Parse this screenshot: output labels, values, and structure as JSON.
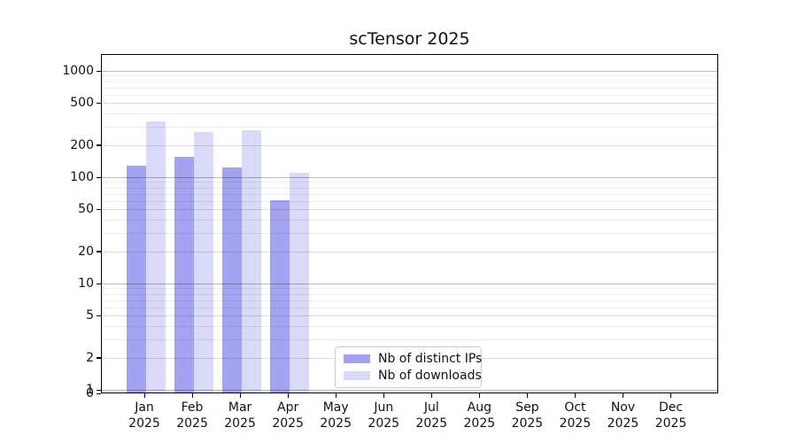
{
  "chart_data": {
    "type": "bar",
    "title": "scTensor 2025",
    "xlabel": "",
    "ylabel": "",
    "y_scale": "log (linear segment 0-1 at bottom)",
    "ylim": [
      0,
      1440
    ],
    "y_ticks": [
      0,
      1,
      2,
      5,
      10,
      20,
      50,
      100,
      200,
      500,
      1000
    ],
    "categories": [
      "Jan",
      "Feb",
      "Mar",
      "Apr",
      "May",
      "Jun",
      "Jul",
      "Aug",
      "Sep",
      "Oct",
      "Nov",
      "Dec"
    ],
    "x_tick_year": "2025",
    "grid": "horizontal, major and minor, drawn above bars",
    "legend_position": "inside axes, lower center",
    "series": [
      {
        "name": "Nb of distinct IPs",
        "color": "#a3a3f2",
        "values": [
          129,
          156,
          123,
          61,
          0,
          0,
          0,
          0,
          0,
          0,
          0,
          0
        ]
      },
      {
        "name": "Nb of downloads",
        "color": "#d9d9f8",
        "values": [
          333,
          265,
          278,
          110,
          0,
          0,
          0,
          0,
          0,
          0,
          0,
          0
        ]
      }
    ]
  },
  "colors": {
    "background": "#ffffff",
    "axis_spine": "#000000",
    "grid_major": "rgba(0,0,0,0.28)",
    "grid_mid": "rgba(0,0,0,0.13)",
    "grid_minor": "rgba(0,0,0,0.07)",
    "text": "#111111",
    "legend_border": "#cccccc"
  }
}
